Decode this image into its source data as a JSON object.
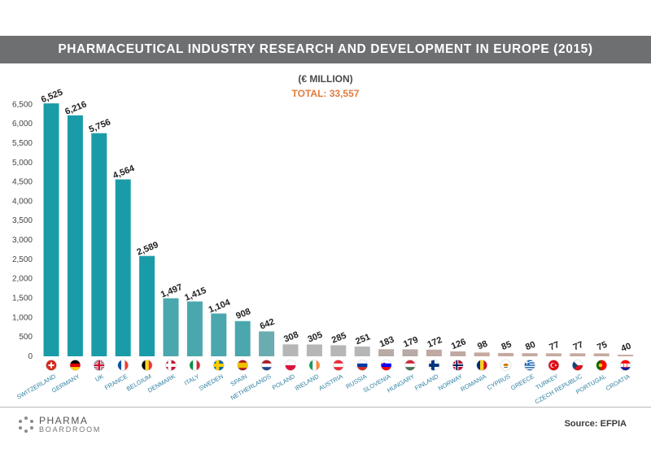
{
  "header": {
    "title": "PHARMACEUTICAL INDUSTRY RESEARCH AND DEVELOPMENT IN EUROPE (2015)",
    "unit": "(€ MILLION)",
    "total": "TOTAL: 33,557"
  },
  "chart_data": {
    "type": "bar",
    "categories": [
      "SWITZERLAND",
      "GERMANY",
      "UK",
      "FRANCE",
      "BELGIUM",
      "DENMARK",
      "ITALY",
      "SWEDEN",
      "SPAIN",
      "NETHERLANDS",
      "POLAND",
      "IRELAND",
      "AUSTRIA",
      "RUSSIA",
      "SLOVENIA",
      "HUNGARY",
      "FINLAND",
      "NORWAY",
      "ROMANIA",
      "CYPRUS",
      "GREECE",
      "TURKEY",
      "CZECH REPUBLIC",
      "PORTUGAL",
      "CROATIA"
    ],
    "values": [
      6525,
      6216,
      5756,
      4564,
      2589,
      1497,
      1415,
      1104,
      908,
      642,
      308,
      305,
      285,
      251,
      183,
      179,
      172,
      126,
      98,
      85,
      80,
      77,
      77,
      75,
      40
    ],
    "value_labels": [
      "6,525",
      "6,216",
      "5,756",
      "4,564",
      "2,589",
      "1,497",
      "1,415",
      "1,104",
      "908",
      "642",
      "308",
      "305",
      "285",
      "251",
      "183",
      "179",
      "172",
      "126",
      "98",
      "85",
      "80",
      "77",
      "77",
      "75",
      "40"
    ],
    "yticks": [
      "0",
      "500",
      "1,000",
      "1,500",
      "2,000",
      "2,500",
      "3,000",
      "3,500",
      "4,000",
      "4,500",
      "5,000",
      "5,500",
      "6,000",
      "6,500"
    ],
    "ytick_values": [
      0,
      500,
      1000,
      1500,
      2000,
      2500,
      3000,
      3500,
      4000,
      4500,
      5000,
      5500,
      6000,
      6500
    ],
    "ylim": [
      0,
      6700
    ],
    "bar_colors": [
      "#1a9ca8",
      "#1a9ca8",
      "#1a9ca8",
      "#1a9ca8",
      "#1a9ca8",
      "#4aa7ad",
      "#4aa7ad",
      "#4aa7ad",
      "#4aa7ad",
      "#6aacb0",
      "#b6b6b6",
      "#b6b6b6",
      "#b6b6b6",
      "#b6b6b6",
      "#b8aaa6",
      "#b8aaa6",
      "#c0a9a2",
      "#c0a9a2",
      "#c6a9a0",
      "#c6a9a0",
      "#c6a9a0",
      "#c6a9a0",
      "#c6a9a0",
      "#c6a9a0",
      "#c6a9a0"
    ],
    "flags": [
      "switzerland-flag-icon",
      "germany-flag-icon",
      "uk-flag-icon",
      "france-flag-icon",
      "belgium-flag-icon",
      "denmark-flag-icon",
      "italy-flag-icon",
      "sweden-flag-icon",
      "spain-flag-icon",
      "netherlands-flag-icon",
      "poland-flag-icon",
      "ireland-flag-icon",
      "austria-flag-icon",
      "russia-flag-icon",
      "slovenia-flag-icon",
      "hungary-flag-icon",
      "finland-flag-icon",
      "norway-flag-icon",
      "romania-flag-icon",
      "cyprus-flag-icon",
      "greece-flag-icon",
      "turkey-flag-icon",
      "czech-republic-flag-icon",
      "portugal-flag-icon",
      "croatia-flag-icon"
    ],
    "category_label_color": "#2e7fa0",
    "grid": false
  },
  "footer": {
    "logo_top": "PHARMA",
    "logo_bottom": "BOARDROOM",
    "source": "Source: EFPIA"
  }
}
